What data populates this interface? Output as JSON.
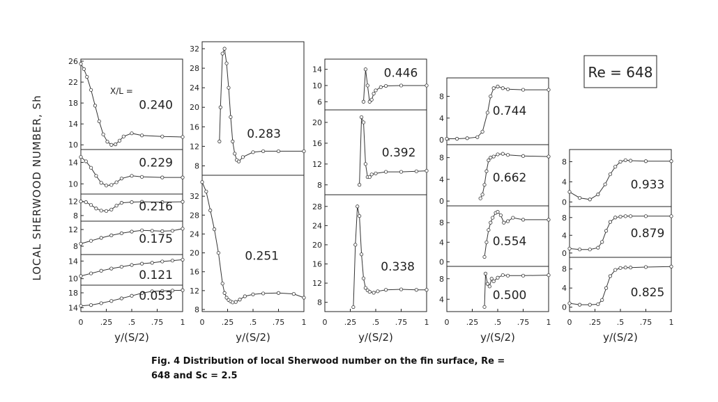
{
  "figure": {
    "reynolds": "Re = 648",
    "ylabel": "LOCAL SHERWOOD NUMBER, Sh",
    "xlabel": "y/(S/2)",
    "xl_label": "X/L =",
    "caption_line1": "Fig. 4   Distribution of local Sherwood number on the fin surface, Re  =",
    "caption_line2": "648 and Sc = 2.5"
  },
  "chart_data": [
    {
      "type": "line",
      "column": 1,
      "name": "0.240",
      "xlim": [
        0,
        1
      ],
      "ylim": [
        9.5,
        26
      ],
      "yticks": [
        10,
        14,
        18,
        22,
        26
      ],
      "x": [
        0,
        0.03,
        0.06,
        0.1,
        0.14,
        0.18,
        0.22,
        0.26,
        0.3,
        0.34,
        0.38,
        0.42,
        0.5,
        0.6,
        0.8,
        1.0
      ],
      "y": [
        25.5,
        24.5,
        23,
        20.5,
        17.5,
        14.5,
        12,
        10.6,
        10,
        10.1,
        10.8,
        11.6,
        12.2,
        11.8,
        11.6,
        11.5
      ]
    },
    {
      "type": "line",
      "column": 1,
      "name": "0.229",
      "xlim": [
        0,
        1
      ],
      "ylim": [
        8.5,
        16
      ],
      "yticks": [
        10,
        14
      ],
      "x": [
        0,
        0.05,
        0.1,
        0.15,
        0.2,
        0.25,
        0.3,
        0.35,
        0.4,
        0.5,
        0.6,
        0.8,
        1.0
      ],
      "y": [
        15,
        14.2,
        13,
        11.5,
        10.2,
        9.7,
        9.8,
        10.3,
        11,
        11.5,
        11.3,
        11.2,
        11.2
      ]
    },
    {
      "type": "line",
      "column": 1,
      "name": "0.216",
      "xlim": [
        0,
        1
      ],
      "ylim": [
        7,
        13.5
      ],
      "yticks": [
        8,
        12
      ],
      "x": [
        0,
        0.05,
        0.1,
        0.15,
        0.2,
        0.25,
        0.3,
        0.35,
        0.4,
        0.5,
        0.6,
        0.8,
        1.0
      ],
      "y": [
        12,
        11.8,
        11,
        10,
        9.4,
        9.3,
        9.7,
        10.8,
        11.6,
        11.8,
        11.9,
        11.8,
        11.9
      ]
    },
    {
      "type": "line",
      "column": 1,
      "name": "0.175",
      "xlim": [
        0,
        1
      ],
      "ylim": [
        6.5,
        13.5
      ],
      "yticks": [
        8,
        12
      ],
      "x": [
        0,
        0.1,
        0.2,
        0.3,
        0.4,
        0.5,
        0.6,
        0.7,
        0.8,
        0.9,
        1.0
      ],
      "y": [
        8.6,
        9.3,
        10,
        10.6,
        11.1,
        11.5,
        11.8,
        11.7,
        11.6,
        11.7,
        12.2
      ]
    },
    {
      "type": "line",
      "column": 1,
      "name": "0.121",
      "xlim": [
        0,
        1
      ],
      "ylim": [
        9,
        15
      ],
      "yticks": [
        10,
        14
      ],
      "x": [
        0,
        0.1,
        0.2,
        0.3,
        0.4,
        0.5,
        0.6,
        0.7,
        0.8,
        0.9,
        1.0
      ],
      "y": [
        10.6,
        11.2,
        11.8,
        12.3,
        12.7,
        13.1,
        13.4,
        13.6,
        13.9,
        14.1,
        14.3
      ]
    },
    {
      "type": "line",
      "column": 1,
      "name": "0.053",
      "xlim": [
        0,
        1
      ],
      "ylim": [
        13.5,
        19.5
      ],
      "yticks": [
        14,
        18
      ],
      "x": [
        0,
        0.1,
        0.2,
        0.3,
        0.4,
        0.5,
        0.6,
        0.7,
        0.8,
        0.9,
        1.0
      ],
      "y": [
        14.5,
        14.7,
        15.2,
        15.8,
        16.5,
        17.2,
        17.9,
        18.4,
        18.5,
        18.6,
        18.7
      ]
    },
    {
      "type": "line",
      "column": 2,
      "name": "0.283",
      "xlim": [
        0,
        1
      ],
      "ylim": [
        6.5,
        33
      ],
      "yticks": [
        8,
        12,
        16,
        20,
        24,
        28,
        32
      ],
      "x": [
        0.17,
        0.18,
        0.2,
        0.22,
        0.24,
        0.26,
        0.28,
        0.3,
        0.32,
        0.34,
        0.36,
        0.4,
        0.5,
        0.6,
        0.75,
        1.0
      ],
      "y": [
        13,
        20,
        31,
        32,
        29,
        24,
        18,
        13,
        10.5,
        9.2,
        8.9,
        9.8,
        10.8,
        11,
        11,
        11
      ]
    },
    {
      "type": "line",
      "column": 2,
      "name": "0.251",
      "xlim": [
        0,
        1
      ],
      "ylim": [
        8,
        36
      ],
      "yticks": [
        8,
        12,
        16,
        20,
        24,
        28,
        32
      ],
      "x": [
        0,
        0.04,
        0.08,
        0.12,
        0.16,
        0.2,
        0.22,
        0.24,
        0.26,
        0.28,
        0.3,
        0.33,
        0.37,
        0.42,
        0.5,
        0.6,
        0.75,
        0.9,
        1.0
      ],
      "y": [
        35,
        33,
        29,
        25,
        20,
        13.5,
        11.5,
        10.5,
        10,
        9.7,
        9.5,
        9.6,
        10.1,
        10.8,
        11.2,
        11.4,
        11.5,
        11.3,
        10.5
      ]
    },
    {
      "type": "line",
      "column": 3,
      "name": "0.446",
      "xlim": [
        0,
        1
      ],
      "ylim": [
        4.5,
        16
      ],
      "yticks": [
        6,
        10,
        14
      ],
      "x": [
        0.38,
        0.4,
        0.42,
        0.44,
        0.46,
        0.48,
        0.5,
        0.55,
        0.6,
        0.75,
        1.0
      ],
      "y": [
        6,
        14,
        10,
        6,
        6.5,
        8,
        8.8,
        9.6,
        9.9,
        10,
        10
      ]
    },
    {
      "type": "line",
      "column": 3,
      "name": "0.392",
      "xlim": [
        0,
        1
      ],
      "ylim": [
        6.5,
        22
      ],
      "yticks": [
        8,
        12,
        16,
        20
      ],
      "x": [
        0.34,
        0.36,
        0.38,
        0.4,
        0.42,
        0.44,
        0.46,
        0.5,
        0.6,
        0.75,
        0.9,
        1.0
      ],
      "y": [
        8,
        21,
        20,
        12,
        9.5,
        9.5,
        10,
        10.2,
        10.5,
        10.5,
        10.6,
        10.7
      ]
    },
    {
      "type": "line",
      "column": 3,
      "name": "0.338",
      "xlim": [
        0,
        1
      ],
      "ylim": [
        6.5,
        30
      ],
      "yticks": [
        8,
        12,
        16,
        20,
        24,
        28
      ],
      "x": [
        0.28,
        0.3,
        0.32,
        0.34,
        0.36,
        0.38,
        0.4,
        0.42,
        0.44,
        0.48,
        0.52,
        0.6,
        0.75,
        0.9,
        1.0
      ],
      "y": [
        7,
        20,
        28,
        26,
        18,
        13,
        11,
        10.5,
        10.2,
        10,
        10.3,
        10.6,
        10.7,
        10.6,
        10.6
      ]
    },
    {
      "type": "line",
      "column": 4,
      "name": "0.744",
      "xlim": [
        0,
        1
      ],
      "ylim": [
        -0.5,
        11
      ],
      "yticks": [
        0,
        4,
        8
      ],
      "x": [
        0,
        0.1,
        0.2,
        0.3,
        0.35,
        0.4,
        0.43,
        0.46,
        0.5,
        0.55,
        0.6,
        0.75,
        1.0
      ],
      "y": [
        0.2,
        0.2,
        0.3,
        0.5,
        1.5,
        5,
        8,
        9.5,
        9.8,
        9.5,
        9.3,
        9.2,
        9.2
      ]
    },
    {
      "type": "line",
      "column": 4,
      "name": "0.662",
      "xlim": [
        0,
        1
      ],
      "ylim": [
        -0.5,
        10
      ],
      "yticks": [
        0,
        4,
        8
      ],
      "x": [
        0.33,
        0.35,
        0.37,
        0.39,
        0.41,
        0.43,
        0.46,
        0.5,
        0.55,
        0.6,
        0.75,
        1.0
      ],
      "y": [
        0.5,
        1.2,
        3,
        5.5,
        7.5,
        8,
        8.2,
        8.6,
        8.7,
        8.5,
        8.3,
        8.2
      ]
    },
    {
      "type": "line",
      "column": 4,
      "name": "0.554",
      "xlim": [
        0,
        1
      ],
      "ylim": [
        -0.5,
        11
      ],
      "yticks": [
        0,
        4,
        8
      ],
      "x": [
        0.37,
        0.39,
        0.41,
        0.43,
        0.45,
        0.48,
        0.5,
        0.53,
        0.56,
        0.6,
        0.65,
        0.75,
        1.0
      ],
      "y": [
        1,
        4,
        6.5,
        8,
        9,
        10,
        10.2,
        9.5,
        8,
        8.3,
        9,
        8.6,
        8.6
      ]
    },
    {
      "type": "line",
      "column": 4,
      "name": "0.500",
      "xlim": [
        0,
        1
      ],
      "ylim": [
        2,
        10
      ],
      "yticks": [
        4,
        8
      ],
      "x": [
        0.37,
        0.38,
        0.4,
        0.42,
        0.44,
        0.46,
        0.5,
        0.55,
        0.6,
        0.75,
        1.0
      ],
      "y": [
        2.5,
        9,
        7,
        6.5,
        8,
        7.5,
        8.2,
        8.7,
        8.6,
        8.6,
        8.7
      ]
    },
    {
      "type": "line",
      "column": 5,
      "name": "0.933",
      "xlim": [
        0,
        1
      ],
      "ylim": [
        -0.5,
        10
      ],
      "yticks": [
        0,
        4,
        8
      ],
      "x": [
        0,
        0.1,
        0.2,
        0.28,
        0.35,
        0.4,
        0.45,
        0.5,
        0.55,
        0.6,
        0.75,
        1.0
      ],
      "y": [
        2,
        0.8,
        0.5,
        1.5,
        3.5,
        5.5,
        7,
        8,
        8.3,
        8.2,
        8.1,
        8.1
      ]
    },
    {
      "type": "line",
      "column": 5,
      "name": "0.879",
      "xlim": [
        0,
        1
      ],
      "ylim": [
        -0.5,
        10
      ],
      "yticks": [
        0,
        4,
        8
      ],
      "x": [
        0,
        0.1,
        0.2,
        0.28,
        0.32,
        0.36,
        0.4,
        0.45,
        0.5,
        0.55,
        0.6,
        0.75,
        1.0
      ],
      "y": [
        1,
        0.8,
        0.8,
        1.2,
        2.5,
        5,
        7,
        8,
        8.2,
        8.3,
        8.3,
        8.3,
        8.3
      ]
    },
    {
      "type": "line",
      "column": 5,
      "name": "0.825",
      "xlim": [
        0,
        1
      ],
      "ylim": [
        -0.5,
        10
      ],
      "yticks": [
        0,
        4,
        8
      ],
      "x": [
        0,
        0.1,
        0.2,
        0.28,
        0.32,
        0.36,
        0.4,
        0.45,
        0.5,
        0.55,
        0.6,
        0.75,
        1.0
      ],
      "y": [
        0.8,
        0.5,
        0.5,
        0.6,
        1.5,
        4,
        6.5,
        7.8,
        8.2,
        8.3,
        8.3,
        8.4,
        8.5
      ]
    }
  ],
  "x_axis": {
    "ticks": [
      0,
      0.25,
      0.5,
      0.75,
      1
    ],
    "tick_labels": [
      "0",
      ".25",
      ".5",
      ".75",
      "1"
    ]
  }
}
